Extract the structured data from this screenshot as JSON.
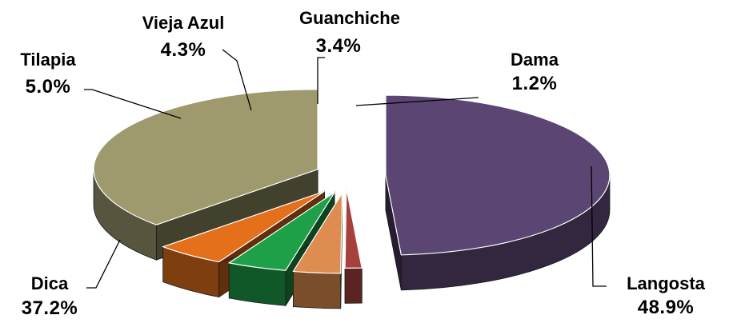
{
  "chart_data": {
    "type": "pie",
    "style": "3d-exploded",
    "title": "",
    "legend": "none",
    "slices": [
      {
        "category": "Langosta",
        "value": 48.9,
        "value_label": "48.9%",
        "color": "#5b4673"
      },
      {
        "category": "Dama",
        "value": 1.2,
        "value_label": "1.2%",
        "color": "#a5403c"
      },
      {
        "category": "Guanchiche",
        "value": 3.4,
        "value_label": "3.4%",
        "color": "#de8c4f"
      },
      {
        "category": "Vieja Azul",
        "value": 4.3,
        "value_label": "4.3%",
        "color": "#1ea048"
      },
      {
        "category": "Tilapia",
        "value": 5.0,
        "value_label": "5.0%",
        "color": "#e5701b"
      },
      {
        "category": "Dica",
        "value": 37.2,
        "value_label": "37.2%",
        "color": "#9e9a6e"
      }
    ]
  }
}
